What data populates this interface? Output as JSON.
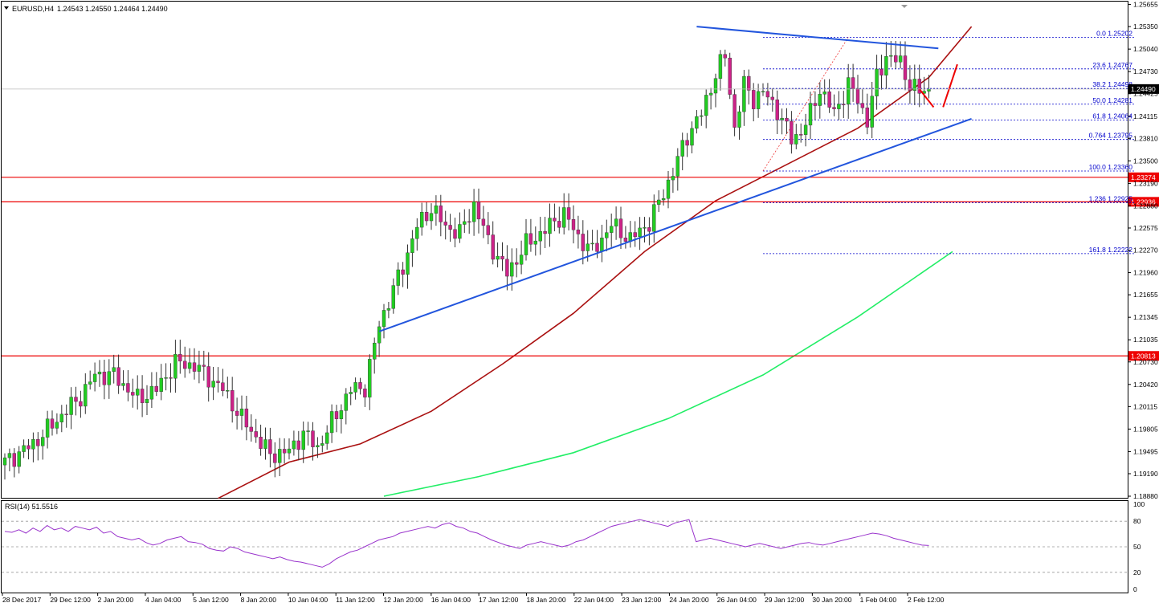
{
  "chart_data": [
    {
      "type": "candlestick",
      "symbol_label": "EURUSD,H4",
      "ohlc_label": "1.24543 1.24550 1.24464 1.24490",
      "current_price": 1.2449,
      "current_price_label": "1.24490",
      "ylim": [
        1.1888,
        1.2565
      ],
      "y_ticks": [
        "1.25655",
        "1.25350",
        "1.25040",
        "1.24730",
        "1.24425",
        "1.24115",
        "1.23810",
        "1.23500",
        "1.23190",
        "1.22880",
        "1.22575",
        "1.22270",
        "1.21960",
        "1.21655",
        "1.21345",
        "1.21035",
        "1.20730",
        "1.20420",
        "1.20115",
        "1.19805",
        "1.19495",
        "1.19190",
        "1.18880"
      ],
      "x_tick_labels": [
        "28 Dec 2017",
        "29 Dec 12:00",
        "2 Jan 20:00",
        "4 Jan 04:00",
        "5 Jan 12:00",
        "8 Jan 20:00",
        "10 Jan 04:00",
        "11 Jan 12:00",
        "12 Jan 20:00",
        "16 Jan 04:00",
        "17 Jan 12:00",
        "18 Jan 20:00",
        "22 Jan 04:00",
        "23 Jan 12:00",
        "24 Jan 20:00",
        "26 Jan 04:00",
        "29 Jan 12:00",
        "30 Jan 20:00",
        "1 Feb 04:00",
        "2 Feb 12:00"
      ],
      "waypoints": [
        [
          0,
          1.1935
        ],
        [
          6,
          1.196
        ],
        [
          12,
          1.2
        ],
        [
          16,
          1.2025
        ],
        [
          19,
          1.2055
        ],
        [
          23,
          1.2055
        ],
        [
          28,
          1.2022
        ],
        [
          32,
          1.2035
        ],
        [
          36,
          1.2072
        ],
        [
          40,
          1.2068
        ],
        [
          46,
          1.2035
        ],
        [
          50,
          1.1995
        ],
        [
          56,
          1.1945
        ],
        [
          60,
          1.195
        ],
        [
          63,
          1.1975
        ],
        [
          66,
          1.1955
        ],
        [
          69,
          1.199
        ],
        [
          73,
          1.2035
        ],
        [
          76,
          1.2038
        ],
        [
          79,
          1.2125
        ],
        [
          84,
          1.2205
        ],
        [
          87,
          1.226
        ],
        [
          90,
          1.2285
        ],
        [
          93,
          1.226
        ],
        [
          96,
          1.225
        ],
        [
          99,
          1.229
        ],
        [
          102,
          1.224
        ],
        [
          106,
          1.2195
        ],
        [
          110,
          1.2235
        ],
        [
          114,
          1.2255
        ],
        [
          118,
          1.2278
        ],
        [
          121,
          1.2245
        ],
        [
          124,
          1.2225
        ],
        [
          128,
          1.2262
        ],
        [
          132,
          1.2242
        ],
        [
          136,
          1.2265
        ],
        [
          138,
          1.2292
        ],
        [
          141,
          1.2335
        ],
        [
          144,
          1.2385
        ],
        [
          147,
          1.2415
        ],
        [
          150,
          1.247
        ],
        [
          152,
          1.2495
        ],
        [
          154,
          1.2395
        ],
        [
          156,
          1.2455
        ],
        [
          158,
          1.2435
        ],
        [
          160,
          1.2445
        ],
        [
          163,
          1.242
        ],
        [
          166,
          1.238
        ],
        [
          168,
          1.239
        ],
        [
          170,
          1.2415
        ],
        [
          172,
          1.245
        ],
        [
          175,
          1.2415
        ],
        [
          178,
          1.2455
        ],
        [
          180,
          1.2435
        ],
        [
          182,
          1.2405
        ],
        [
          184,
          1.2465
        ],
        [
          186,
          1.2495
        ],
        [
          189,
          1.2485
        ],
        [
          191,
          1.2455
        ],
        [
          193,
          1.2445
        ],
        [
          195,
          1.2449
        ]
      ],
      "support_resistance": [
        1.23274,
        1.22936,
        1.20813
      ],
      "support_labels": [
        "1.23274",
        "1.22936",
        "1.20813"
      ],
      "trendlines": [
        {
          "from_index": 79,
          "from_price": 1.2115,
          "to_index": 204,
          "to_price": 1.2408,
          "color": "#2255dd"
        },
        {
          "from_index": 146,
          "from_price": 1.2535,
          "to_index": 197,
          "to_price": 1.2505,
          "color": "#2255dd"
        }
      ],
      "fibonacci": [
        {
          "level": "0.0",
          "price": 1.25202
        },
        {
          "level": "23.6",
          "price": 1.24767
        },
        {
          "level": "38.2",
          "price": 1.24498
        },
        {
          "level": "50.0",
          "price": 1.24281
        },
        {
          "level": "61.8",
          "price": 1.24064
        },
        {
          "level": "0.764",
          "price": 1.23795
        },
        {
          "level": "100.0",
          "price": 1.2336
        },
        {
          "level": "1.236",
          "price": 1.22925
        },
        {
          "level": "161.8",
          "price": 1.22222
        }
      ],
      "ma_red": [
        [
          45,
          1.1885
        ],
        [
          60,
          1.1935
        ],
        [
          75,
          1.196
        ],
        [
          90,
          1.2005
        ],
        [
          105,
          1.207
        ],
        [
          120,
          1.214
        ],
        [
          135,
          1.2225
        ],
        [
          150,
          1.2295
        ],
        [
          165,
          1.2345
        ],
        [
          180,
          1.2395
        ],
        [
          195,
          1.2465
        ],
        [
          204,
          1.2535
        ]
      ],
      "ma_green": [
        [
          80,
          1.1888
        ],
        [
          100,
          1.1915
        ],
        [
          120,
          1.1948
        ],
        [
          140,
          1.1995
        ],
        [
          160,
          1.2055
        ],
        [
          180,
          1.2135
        ],
        [
          200,
          1.2225
        ]
      ],
      "colors": {
        "bull": "#22cc22",
        "bear": "#cc2288",
        "wick": "#333333",
        "resistance": "#ee0000",
        "trendline": "#2255dd",
        "fib": "#0000cc",
        "ma_red": "#aa1111",
        "ma_green": "#22ee66",
        "arrow": "#ee0000"
      }
    },
    {
      "type": "line",
      "title": "RSI(14) 51.5516",
      "ylim": [
        0,
        100
      ],
      "y_ticks": [
        "100",
        "80",
        "50",
        "20",
        "0"
      ],
      "levels": [
        80,
        50,
        20
      ],
      "values": [
        68,
        67,
        70,
        66,
        72,
        68,
        75,
        70,
        72,
        68,
        74,
        72,
        70,
        73,
        66,
        68,
        62,
        60,
        58,
        60,
        55,
        52,
        54,
        58,
        60,
        62,
        56,
        55,
        53,
        48,
        46,
        45,
        50,
        48,
        44,
        42,
        40,
        38,
        36,
        38,
        35,
        33,
        32,
        30,
        28,
        26,
        30,
        36,
        40,
        44,
        46,
        50,
        54,
        58,
        60,
        62,
        66,
        68,
        70,
        72,
        74,
        72,
        76,
        78,
        74,
        72,
        68,
        66,
        62,
        58,
        55,
        52,
        50,
        48,
        52,
        54,
        56,
        54,
        52,
        50,
        52,
        56,
        58,
        62,
        66,
        70,
        74,
        76,
        78,
        80,
        82,
        80,
        78,
        76,
        74,
        78,
        80,
        82,
        56,
        58,
        60,
        58,
        56,
        54,
        52,
        50,
        52,
        54,
        52,
        50,
        48,
        50,
        52,
        54,
        55,
        53,
        52,
        54,
        56,
        58,
        60,
        62,
        64,
        66,
        65,
        63,
        60,
        58,
        56,
        54,
        52,
        51.55
      ],
      "color": "#9933cc"
    }
  ]
}
